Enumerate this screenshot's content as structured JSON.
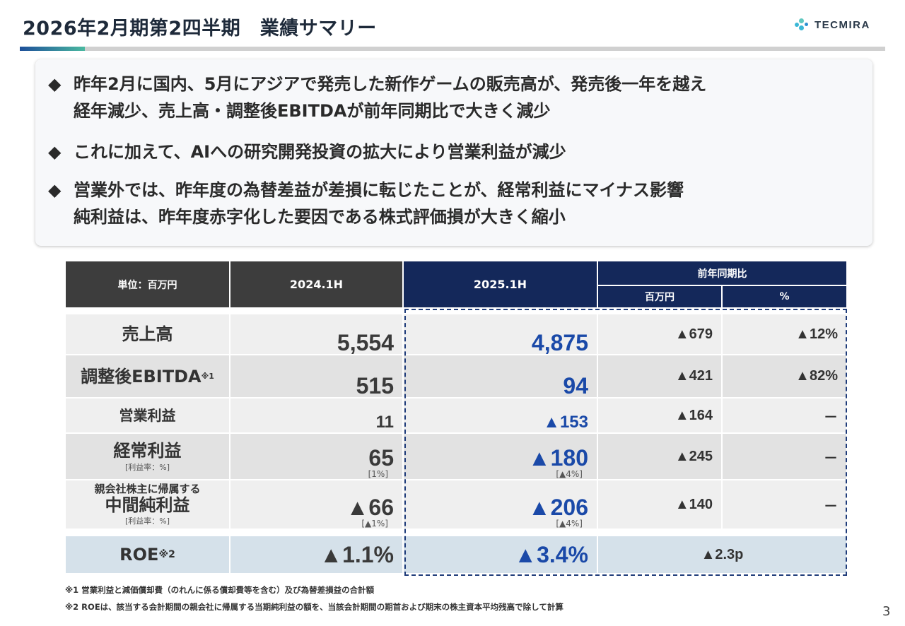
{
  "header": {
    "title": "2026年2月期第2四半期　業績サマリー",
    "logo": "TECMIRA",
    "colors": {
      "accent": "#14285a",
      "highlight": "#1a49a8"
    }
  },
  "summary": {
    "bullet_icon": "diamond-icon",
    "items": [
      [
        "昨年2月に国内、5月にアジアで発売した新作ゲームの販売高が、発売後一年を越え",
        "経年減少、売上高・調整後EBITDAが前年同期比で大きく減少"
      ],
      [
        "これに加えて、AIへの研究開発投資の拡大により営業利益が減少"
      ],
      [
        "営業外では、昨年度の為替差益が差損に転じたことが、経常利益にマイナス影響",
        "純利益は、昨年度赤字化した要因である株式評価損が大きく縮小"
      ]
    ]
  },
  "table": {
    "headers": {
      "unit": "単位：百万円",
      "prev": "2024.1H",
      "curr": "2025.1H",
      "yoy": "前年同期比",
      "yoy_amount": "百万円",
      "yoy_pct": "%"
    },
    "rows": [
      {
        "label": "売上高",
        "prev": "5,554",
        "curr": "4,875",
        "diff": "▲679",
        "pct": "▲12%"
      },
      {
        "label": "調整後EBITDA",
        "note": "※1",
        "prev": "515",
        "curr": "94",
        "diff": "▲421",
        "pct": "▲82%"
      },
      {
        "label": "営業利益",
        "prev": "11",
        "curr": "▲153",
        "diff": "▲164",
        "pct": "－"
      },
      {
        "label": "経常利益",
        "sublabel": "[利益率：%]",
        "prev": "65",
        "prev_margin": "[1%]",
        "curr": "▲180",
        "curr_margin": "[▲4%]",
        "diff": "▲245",
        "pct": "－"
      },
      {
        "label_top": "親会社株主に帰属する",
        "label": "中間純利益",
        "sublabel": "[利益率：%]",
        "prev": "▲66",
        "prev_margin": "[▲1%]",
        "curr": "▲206",
        "curr_margin": "[▲4%]",
        "diff": "▲140",
        "pct": "－"
      }
    ],
    "roe": {
      "label": "ROE",
      "note": "※2",
      "prev": "▲1.1%",
      "curr": "▲3.4%",
      "diff": "▲2.3p"
    }
  },
  "footnotes": [
    "※1 営業利益と減価償却費（のれんに係る償却費等を含む）及び為替差損益の合計額",
    "※2 ROEは、該当する会計期間の親会社に帰属する当期純利益の額を、当該会計期間の期首および期末の株主資本平均残高で除して計算"
  ],
  "page_number": "3"
}
